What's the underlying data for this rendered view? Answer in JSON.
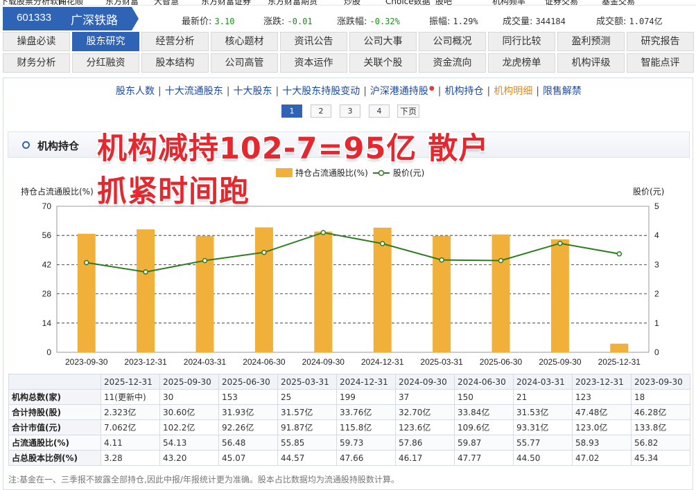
{
  "top_strip": [
    "下载股票分析软件",
    "同花顺",
    "东方财富",
    "大智慧",
    "东方财富证券",
    "东方财富期货",
    "炒股",
    "Choice数据",
    "股吧",
    "机构频率",
    "证券交易",
    "基金交易"
  ],
  "stock": {
    "code": "601333",
    "name": "广深铁路",
    "quotes": [
      {
        "label": "最新价:",
        "value": "3.10"
      },
      {
        "label": "涨跌:",
        "value": "-0.01"
      },
      {
        "label": "涨跌幅:",
        "value": "-0.32%"
      },
      {
        "label": "振幅:",
        "value": "1.29%"
      },
      {
        "label": "成交量:",
        "value": "344184"
      },
      {
        "label": "成交额:",
        "value": "1.074亿"
      }
    ]
  },
  "tabs_row1": [
    "操盘必读",
    "股东研究",
    "经营分析",
    "核心题材",
    "资讯公告",
    "公司大事",
    "公司概况",
    "同行比较",
    "盈利预测",
    "研究报告"
  ],
  "tabs_row2": [
    "财务分析",
    "分红融资",
    "股本结构",
    "公司高管",
    "资本运作",
    "关联个股",
    "资金流向",
    "龙虎榜单",
    "机构评级",
    "智能点评"
  ],
  "active_tab": "股东研究",
  "subnav": [
    "股东人数",
    "十大流通股东",
    "十大股东",
    "十大股东持股变动",
    "沪深港通持股",
    "机构持仓",
    "机构明细",
    "限售解禁"
  ],
  "subnav_current": "机构明细",
  "pager": {
    "pages": [
      "1",
      "2",
      "3",
      "4"
    ],
    "current": "1",
    "next": "下页"
  },
  "section_title": "机构持仓",
  "overlay": {
    "line1": "机构减持102-7=95亿  散户",
    "line2": "抓紧时间跑"
  },
  "colors": {
    "bar": "#f0b03a",
    "line": "#2e7d22",
    "accent": "#2f63b5",
    "overlay": "#e8262d"
  },
  "chart_data": {
    "type": "bar",
    "categories": [
      "2023-09-30",
      "2023-12-31",
      "2024-03-31",
      "2024-06-30",
      "2024-09-30",
      "2024-12-31",
      "2025-03-31",
      "2025-06-30",
      "2025-09-30",
      "2025-12-31"
    ],
    "series": [
      {
        "name": "持仓占流通股比(%)",
        "type": "bar",
        "axis": "left",
        "values": [
          56.82,
          58.93,
          55.77,
          59.87,
          57.86,
          59.73,
          55.85,
          56.48,
          54.13,
          4.11
        ]
      },
      {
        "name": "股价(元)",
        "type": "line",
        "axis": "right",
        "values": [
          3.07,
          2.75,
          3.14,
          3.42,
          4.1,
          3.72,
          3.16,
          3.14,
          3.73,
          3.37
        ]
      }
    ],
    "ylabel_left": "持仓占流通股比(%)",
    "ylabel_right": "股价(元)",
    "ylim_left": [
      0,
      70
    ],
    "yticks_left": [
      "0",
      "14",
      "28",
      "42",
      "56",
      "70"
    ],
    "ylim_right": [
      0,
      5
    ],
    "yticks_right": [
      "0",
      "1",
      "2",
      "3",
      "4",
      "5"
    ],
    "grid": "dashed horizontal",
    "legend": "top-center"
  },
  "table": {
    "periods": [
      "2025-12-31",
      "2025-09-30",
      "2025-06-30",
      "2025-03-31",
      "2024-12-31",
      "2024-09-30",
      "2024-06-30",
      "2024-03-31",
      "2023-12-31",
      "2023-09-30"
    ],
    "rows": [
      {
        "label": "机构总数(家)",
        "cells": [
          "11(更新中)",
          "30",
          "153",
          "25",
          "199",
          "37",
          "150",
          "21",
          "123",
          "18"
        ]
      },
      {
        "label": "合计持股(股)",
        "cells": [
          "2.323亿",
          "30.60亿",
          "31.93亿",
          "31.57亿",
          "33.76亿",
          "32.70亿",
          "33.84亿",
          "31.53亿",
          "47.48亿",
          "46.28亿"
        ]
      },
      {
        "label": "合计市值(元)",
        "cells": [
          "7.062亿",
          "102.2亿",
          "92.26亿",
          "91.87亿",
          "115.8亿",
          "123.6亿",
          "109.6亿",
          "93.31亿",
          "123.0亿",
          "133.8亿"
        ]
      },
      {
        "label": "占流通股比(%)",
        "cells": [
          "4.11",
          "54.13",
          "56.48",
          "55.85",
          "59.73",
          "57.86",
          "59.87",
          "55.77",
          "58.93",
          "56.82"
        ]
      },
      {
        "label": "占总股本比例(%)",
        "cells": [
          "3.28",
          "43.20",
          "45.07",
          "44.57",
          "47.66",
          "46.17",
          "47.77",
          "44.50",
          "47.02",
          "45.34"
        ]
      }
    ]
  },
  "note": "注:基金在一、三季报不披露全部持仓,因此中报/年报统计更为准确。股本占比数据均为流通股持股数计算。"
}
